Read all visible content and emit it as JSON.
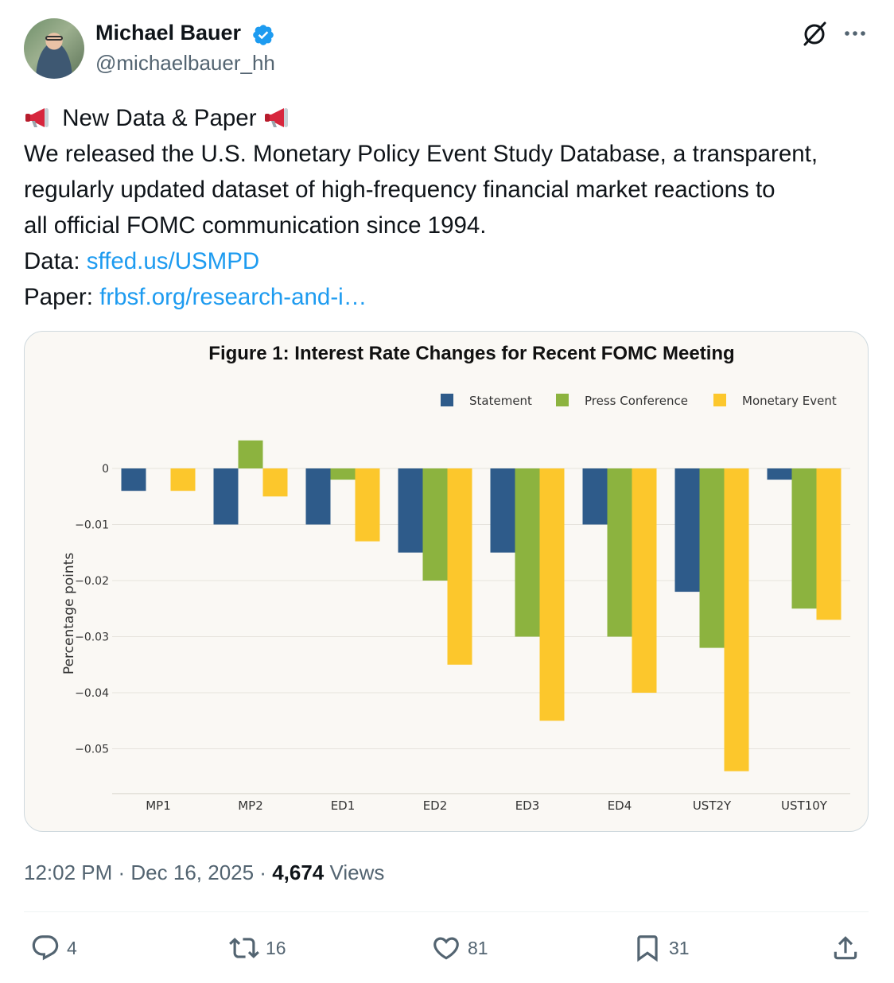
{
  "author": {
    "name": "Michael Bauer",
    "handle": "@michaelbauer_hh"
  },
  "tweet": {
    "headline": "New Data & Paper",
    "body_line1": "We released the U.S. Monetary Policy Event Study Database, a transparent,",
    "body_line2": "regularly updated dataset of high-frequency financial market reactions to",
    "body_line3": "all official FOMC communication since 1994.",
    "data_label": "Data: ",
    "data_link": "sffed.us/USMPD",
    "paper_label": "Paper: ",
    "paper_link": "frbsf.org/research-and-i…"
  },
  "meta": {
    "time": "12:02 PM",
    "date": "Dec 16, 2025",
    "views_count": "4,674",
    "views_label": "Views"
  },
  "actions": {
    "replies": "4",
    "reposts": "16",
    "likes": "81",
    "bookmarks": "31"
  },
  "icons": [
    "verified-badge-icon",
    "grok-icon",
    "more-icon",
    "megaphone-icon",
    "reply-icon",
    "repost-icon",
    "like-icon",
    "bookmark-icon",
    "share-icon"
  ],
  "colors": {
    "link": "#1d9bf0",
    "verified": "#1d9bf0",
    "statement": "#2e5b8a",
    "press_conference": "#8cb33f",
    "monetary_event": "#fcc72c"
  },
  "chart_data": {
    "type": "bar",
    "title": "Figure 1: Interest Rate Changes for Recent FOMC Meeting",
    "xlabel": "",
    "ylabel": "Percentage points",
    "categories": [
      "MP1",
      "MP2",
      "ED1",
      "ED2",
      "ED3",
      "ED4",
      "UST2Y",
      "UST10Y"
    ],
    "series": [
      {
        "name": "Statement",
        "color": "#2e5b8a",
        "values": [
          -0.004,
          -0.01,
          -0.01,
          -0.015,
          -0.015,
          -0.01,
          -0.022,
          -0.002
        ]
      },
      {
        "name": "Press Conference",
        "color": "#8cb33f",
        "values": [
          0,
          0.005,
          -0.002,
          -0.02,
          -0.03,
          -0.03,
          -0.032,
          -0.025
        ]
      },
      {
        "name": "Monetary Event",
        "color": "#fcc72c",
        "values": [
          -0.004,
          -0.005,
          -0.013,
          -0.035,
          -0.045,
          -0.04,
          -0.054,
          -0.027
        ]
      }
    ],
    "yticks": [
      0,
      -0.01,
      -0.02,
      -0.03,
      -0.04,
      -0.05
    ],
    "ytick_labels": [
      "0",
      "−0.01",
      "−0.02",
      "−0.03",
      "−0.04",
      "−0.05"
    ],
    "ylim": [
      -0.058,
      0.0075
    ],
    "grid": true,
    "legend_position": "top-right"
  }
}
